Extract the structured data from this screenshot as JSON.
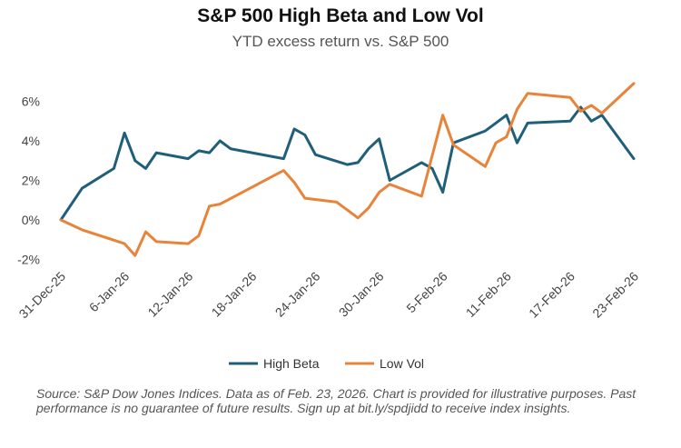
{
  "chart_data": {
    "type": "line",
    "title": "S&P 500 High Beta and Low Vol",
    "subtitle": "YTD excess return vs. S&P 500",
    "xlabel": "",
    "ylabel": "",
    "ylim": [
      -2,
      7
    ],
    "y_ticks": [
      -2,
      0,
      2,
      4,
      6
    ],
    "y_tick_labels": [
      "-2%",
      "0%",
      "2%",
      "4%",
      "6%"
    ],
    "x_ticks": [
      0,
      6,
      12,
      18,
      24,
      30,
      36,
      42,
      48,
      54
    ],
    "x_tick_labels": [
      "31-Dec-25",
      "6-Jan-26",
      "12-Jan-26",
      "18-Jan-26",
      "24-Jan-26",
      "30-Jan-26",
      "5-Feb-26",
      "11-Feb-26",
      "17-Feb-26",
      "23-Feb-26"
    ],
    "xlim": [
      0,
      54
    ],
    "grid": false,
    "legend_position": "bottom",
    "series": [
      {
        "name": "High Beta",
        "color": "#1f5f7a",
        "x": [
          0,
          2,
          5,
          6,
          7,
          8,
          9,
          12,
          13,
          14,
          15,
          16,
          21,
          22,
          23,
          24,
          27,
          28,
          29,
          30,
          31,
          34,
          35,
          36,
          37,
          40,
          41,
          42,
          43,
          44,
          48,
          49,
          50,
          51,
          54
        ],
        "y": [
          0,
          1.6,
          2.6,
          4.4,
          3.0,
          2.6,
          3.4,
          3.1,
          3.5,
          3.4,
          4.0,
          3.6,
          3.1,
          4.6,
          4.3,
          3.3,
          2.8,
          2.9,
          3.6,
          4.1,
          2.0,
          2.9,
          2.6,
          1.4,
          3.9,
          4.5,
          4.9,
          5.3,
          3.9,
          4.9,
          5.0,
          5.7,
          5.0,
          5.3,
          3.1
        ]
      },
      {
        "name": "Low Vol",
        "color": "#e8833a",
        "x": [
          0,
          2,
          6,
          7,
          8,
          9,
          12,
          13,
          14,
          15,
          21,
          22,
          23,
          26,
          27,
          28,
          29,
          30,
          31,
          34,
          36,
          37,
          40,
          41,
          42,
          43,
          44,
          48,
          49,
          50,
          51,
          54
        ],
        "y": [
          0,
          -0.5,
          -1.2,
          -1.8,
          -0.6,
          -1.1,
          -1.2,
          -0.8,
          0.7,
          0.8,
          2.5,
          1.9,
          1.1,
          0.9,
          0.5,
          0.1,
          0.6,
          1.4,
          1.8,
          1.2,
          5.3,
          3.8,
          2.7,
          3.9,
          4.2,
          5.6,
          6.4,
          6.2,
          5.5,
          5.8,
          5.4,
          6.9
        ]
      }
    ]
  },
  "footer": {
    "source": "Source: S&P Dow Jones Indices. Data as of Feb. 23, 2026. Chart is provided for illustrative purposes. Past performance is no guarantee of future results. Sign up at bit.ly/spdjidd to receive index insights."
  }
}
